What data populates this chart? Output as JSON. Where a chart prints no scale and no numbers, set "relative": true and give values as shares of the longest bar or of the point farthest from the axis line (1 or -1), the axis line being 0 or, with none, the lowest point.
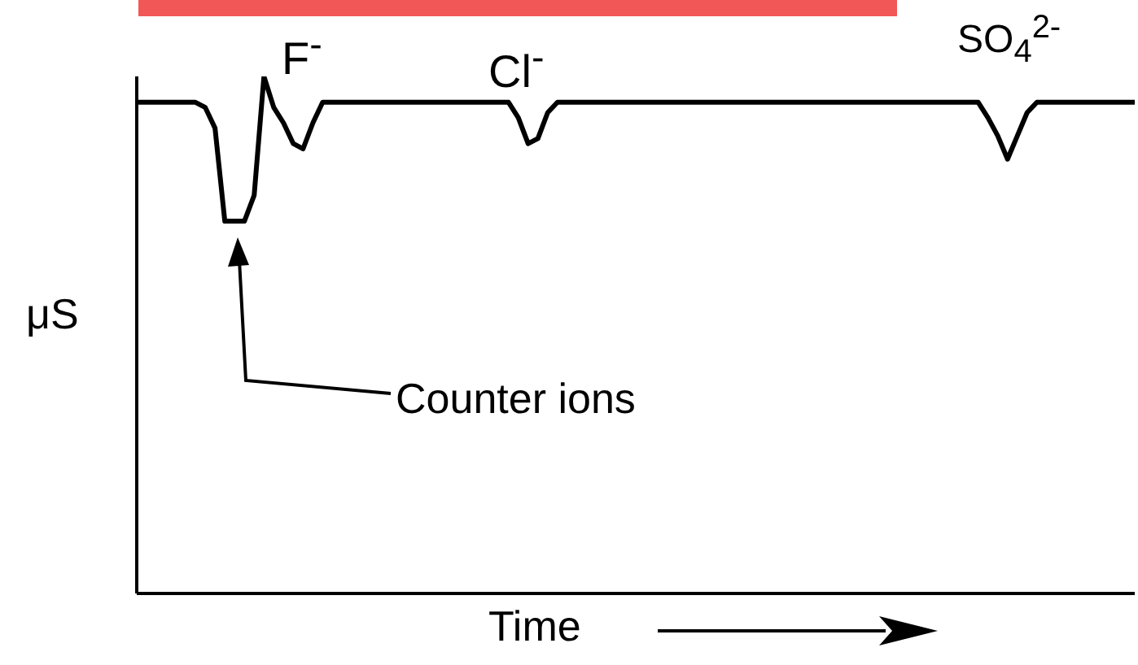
{
  "chart_data": {
    "type": "line",
    "relative": true,
    "xlabel": "Time",
    "ylabel": "μS",
    "annotations": [
      "F$^{-}$",
      "Cl$^{-}$",
      "SO$_{4}$$^{2-}$",
      "Counter ions"
    ],
    "categories": [
      null,
      null,
      null,
      null,
      null,
      null,
      null,
      null,
      null,
      null,
      null,
      null,
      null,
      null,
      null,
      null,
      null,
      null,
      null,
      null,
      null,
      null,
      null,
      null,
      null,
      null,
      null,
      null,
      null,
      null,
      null,
      null,
      null,
      null,
      null,
      null,
      null,
      null,
      null,
      null,
      null,
      null,
      null,
      null,
      null,
      null,
      null,
      null,
      null,
      null,
      null,
      null,
      null,
      null,
      null,
      null,
      null,
      null,
      null,
      null,
      null,
      null,
      null,
      null,
      null,
      null,
      null,
      null,
      null,
      null,
      null,
      null,
      null,
      null,
      null,
      null,
      null,
      null,
      null,
      null,
      null,
      null,
      null,
      null,
      null,
      null,
      null,
      null,
      null,
      null,
      null,
      null,
      null,
      null,
      null,
      null,
      null,
      null,
      null,
      null,
      null,
      null,
      null
    ],
    "values": [
      0.95,
      0.95,
      0.95,
      0.95,
      0.95,
      0.95,
      0.95,
      0.94,
      0.9,
      0.72,
      0.72,
      0.72,
      0.77,
      1,
      0.94,
      0.91,
      0.87,
      0.86,
      0.91,
      0.95,
      0.95,
      0.95,
      0.95,
      0.95,
      0.95,
      0.95,
      0.95,
      0.95,
      0.95,
      0.95,
      0.95,
      0.95,
      0.95,
      0.95,
      0.95,
      0.95,
      0.95,
      0.95,
      0.95,
      0.92,
      0.87,
      0.88,
      0.93,
      0.95,
      0.95,
      0.95,
      0.95,
      0.95,
      0.95,
      0.95,
      0.95,
      0.95,
      0.95,
      0.95,
      0.95,
      0.95,
      0.95,
      0.95,
      0.95,
      0.95,
      0.95,
      0.95,
      0.95,
      0.95,
      0.95,
      0.95,
      0.95,
      0.95,
      0.95,
      0.95,
      0.95,
      0.95,
      0.95,
      0.95,
      0.95,
      0.95,
      0.95,
      0.95,
      0.95,
      0.95,
      0.95,
      0.95,
      0.95,
      0.95,
      0.95,
      0.95,
      0.95,
      0.92,
      0.885,
      0.84,
      0.885,
      0.93,
      0.95,
      0.95,
      0.95,
      0.95,
      0.95,
      0.95,
      0.95,
      0.95,
      0.95,
      0.95,
      0.95
    ],
    "color": "#000000",
    "marker": "none",
    "line_style": "solid"
  }
}
